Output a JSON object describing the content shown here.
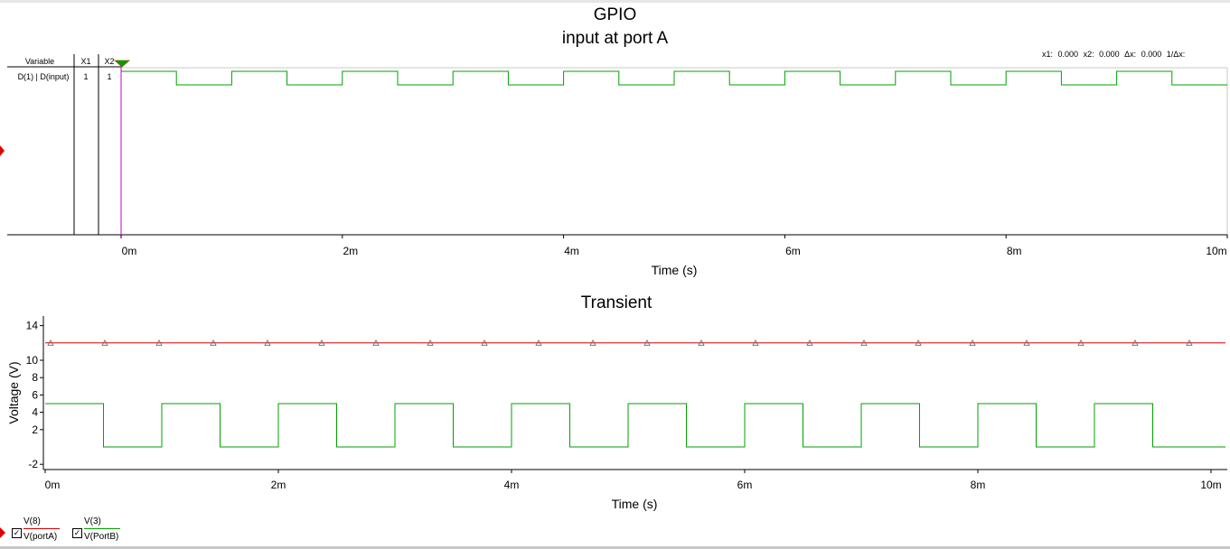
{
  "digital_panel": {
    "title": "GPIO",
    "subtitle": "input at port A",
    "table_headers": {
      "variable": "Variable",
      "x1": "X1",
      "x2": "X2"
    },
    "row": {
      "variable": "D(1) | D(input)",
      "x1": "1",
      "x2": "1"
    },
    "cursor_readout": {
      "x1_label": "x1:",
      "x1_value": "0.000",
      "x2_label": "x2:",
      "x2_value": "0.000",
      "dx_label": "Δx:",
      "dx_value": "0.000",
      "inv_dx_label": "1/Δx:"
    }
  },
  "transient_panel": {
    "title": "Transient"
  },
  "legend": [
    {
      "top": "V(8)",
      "bottom": "V(portA)",
      "color": "#d40000",
      "checked": true
    },
    {
      "top": "V(3)",
      "bottom": "V(PortB)",
      "color": "#00a000",
      "checked": true
    }
  ],
  "colors": {
    "red": "#d40000",
    "green": "#00a000",
    "magenta": "#c000c0"
  },
  "chart_data": [
    {
      "type": "line",
      "title": "GPIO",
      "subtitle": "input at port A",
      "xlabel": "Time (s)",
      "ylabel": "",
      "xlim": [
        0,
        0.01
      ],
      "x_ticks": [
        0,
        0.002,
        0.004,
        0.006,
        0.008,
        0.01
      ],
      "x_tick_labels": [
        "0m",
        "2m",
        "4m",
        "6m",
        "8m",
        "10m"
      ],
      "series": [
        {
          "name": "D(1) | D(input)",
          "color": "#00a000",
          "kind": "digital",
          "period": 0.001,
          "duty": 0.5,
          "start_level": 1
        }
      ]
    },
    {
      "type": "line",
      "title": "Transient",
      "xlabel": "Time (s)",
      "ylabel": "Voltage (V)",
      "xlim": [
        0,
        0.01
      ],
      "ylim": [
        -2.5,
        15
      ],
      "x_ticks": [
        0,
        0.002,
        0.004,
        0.006,
        0.008,
        0.01
      ],
      "x_tick_labels": [
        "0m",
        "2m",
        "4m",
        "6m",
        "8m",
        "10m"
      ],
      "y_ticks": [
        14,
        10,
        8,
        6,
        4,
        2,
        -2
      ],
      "y_tick_labels": [
        "14",
        "10",
        "8",
        "6",
        "4",
        "2",
        "-2"
      ],
      "series": [
        {
          "name": "V(portA)",
          "color": "#d40000",
          "kind": "constant",
          "value": 12,
          "marker": "triangle",
          "marker_count": 22
        },
        {
          "name": "V(PortB)",
          "color": "#00a000",
          "kind": "square",
          "period": 0.001,
          "duty": 0.5,
          "high": 5,
          "low": 0
        }
      ]
    }
  ]
}
